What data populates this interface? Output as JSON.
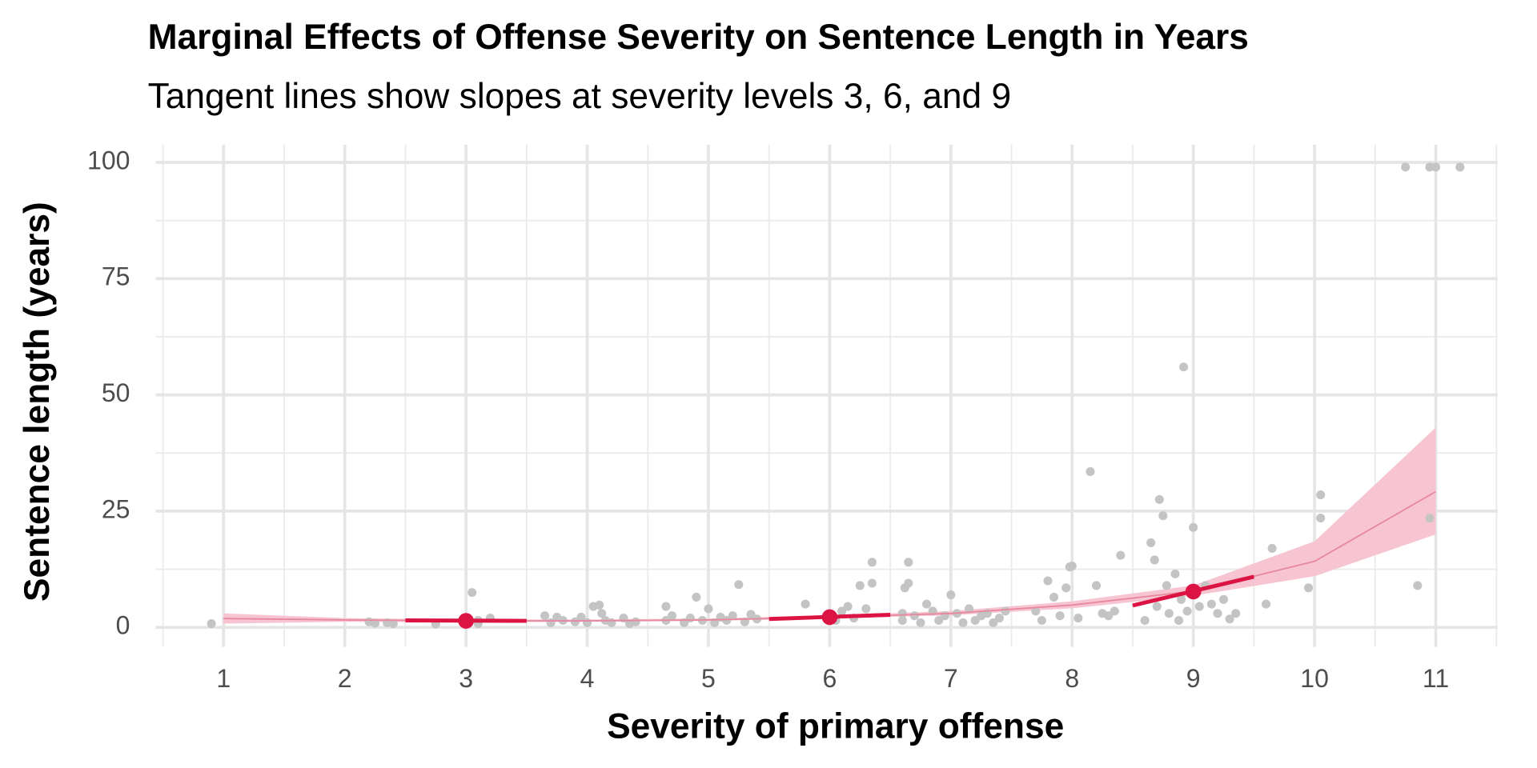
{
  "chart_data": {
    "type": "scatter",
    "title": "Marginal Effects of Offense Severity on Sentence Length in Years",
    "subtitle": "Tangent lines show slopes at severity levels 3, 6, and 9",
    "x_label": "Severity of primary offense",
    "y_label": "Sentence length (years)",
    "xlim": [
      0.44,
      11.51
    ],
    "ylim": [
      -4.2,
      103.8
    ],
    "xticks": [
      1,
      2,
      3,
      4,
      5,
      6,
      7,
      8,
      9,
      10,
      11
    ],
    "yticks": [
      0,
      25,
      50,
      75,
      100
    ],
    "grid": true,
    "points": {
      "color": "#c4c4c4",
      "x": [
        0.9,
        2.2,
        2.25,
        2.35,
        2.4,
        2.75,
        3.05,
        3.1,
        3.2,
        3.1,
        3.65,
        3.7,
        3.75,
        3.8,
        3.9,
        3.95,
        4.0,
        4.05,
        4.1,
        4.12,
        4.15,
        4.2,
        4.3,
        4.35,
        4.4,
        4.65,
        4.65,
        4.7,
        4.8,
        4.85,
        4.9,
        4.95,
        5.0,
        5.05,
        5.1,
        5.15,
        5.2,
        5.25,
        5.3,
        5.35,
        5.4,
        5.8,
        6.05,
        6.1,
        6.15,
        6.2,
        6.25,
        6.3,
        6.35,
        6.35,
        6.6,
        6.6,
        6.62,
        6.65,
        6.65,
        6.7,
        6.75,
        6.8,
        6.85,
        6.9,
        6.95,
        7.0,
        7.05,
        7.1,
        7.15,
        7.2,
        7.25,
        7.3,
        7.35,
        7.4,
        7.45,
        7.7,
        7.75,
        7.8,
        7.85,
        7.9,
        7.95,
        7.98,
        8.0,
        8.05,
        8.15,
        8.2,
        8.25,
        8.3,
        8.35,
        8.4,
        8.6,
        8.65,
        8.68,
        8.7,
        8.72,
        8.75,
        8.78,
        8.8,
        8.85,
        8.88,
        8.9,
        8.92,
        8.95,
        9.0,
        9.05,
        9.1,
        9.15,
        9.2,
        9.25,
        9.3,
        9.35,
        9.6,
        9.65,
        9.95,
        10.05,
        10.05,
        10.75,
        10.85,
        10.95,
        11.0,
        10.95,
        11.2
      ],
      "y": [
        0.8,
        1.2,
        0.9,
        1,
        0.8,
        0.7,
        7.5,
        1.5,
        2,
        0.8,
        2.5,
        1,
        2.2,
        1.5,
        1.2,
        2.2,
        1,
        4.5,
        4.8,
        3,
        1.5,
        1,
        2,
        0.8,
        1.2,
        1.5,
        4.5,
        2.5,
        1,
        2,
        6.5,
        1.5,
        4,
        1,
        2.2,
        1.5,
        2.5,
        9.2,
        1.2,
        2.8,
        1.8,
        5,
        1.5,
        3.5,
        4.5,
        2,
        9,
        4,
        14,
        9.5,
        1.5,
        3,
        8.5,
        14,
        9.5,
        2.5,
        1,
        5,
        3.5,
        1.5,
        2.5,
        7,
        3,
        1,
        4,
        1.5,
        2.5,
        3,
        1,
        2,
        3.5,
        3.5,
        1.5,
        10,
        6.5,
        2.5,
        8.5,
        13,
        13.2,
        2,
        33.5,
        9,
        3,
        2.5,
        3.5,
        15.5,
        1.5,
        18.2,
        14.5,
        4.5,
        27.5,
        24,
        9,
        3,
        11.5,
        1.5,
        6,
        56,
        3.5,
        21.5,
        4.5,
        9,
        5,
        3,
        6,
        1.8,
        3,
        5,
        17,
        8.5,
        28.5,
        23.5,
        99,
        9,
        99,
        99,
        23.5,
        99
      ]
    },
    "fit": {
      "color": "#e8889f",
      "band_color": "#f7c5d2",
      "x": [
        1,
        2,
        3,
        4,
        5,
        6,
        7,
        8,
        9,
        10,
        11
      ],
      "y": [
        1.9,
        1.6,
        1.4,
        1.4,
        1.6,
        2.2,
        3.0,
        4.8,
        7.8,
        14.2,
        29.2
      ],
      "lower": [
        0.8,
        1.2,
        1.1,
        1.2,
        1.4,
        1.9,
        2.6,
        4.1,
        6.8,
        11,
        20
      ],
      "upper": [
        3,
        2,
        1.7,
        1.7,
        1.9,
        2.6,
        3.5,
        5.6,
        9,
        18.5,
        43
      ]
    },
    "tangents": {
      "color": "#dc1443",
      "lines": [
        {
          "x": [
            2.5,
            3.5
          ],
          "y": [
            1.5,
            1.4
          ]
        },
        {
          "x": [
            5.5,
            6.5
          ],
          "y": [
            1.8,
            2.7
          ]
        },
        {
          "x": [
            8.5,
            9.5
          ],
          "y": [
            4.7,
            10.9
          ]
        }
      ],
      "x": [
        3,
        6,
        9
      ],
      "y": [
        1.4,
        2.2,
        7.7
      ]
    }
  }
}
